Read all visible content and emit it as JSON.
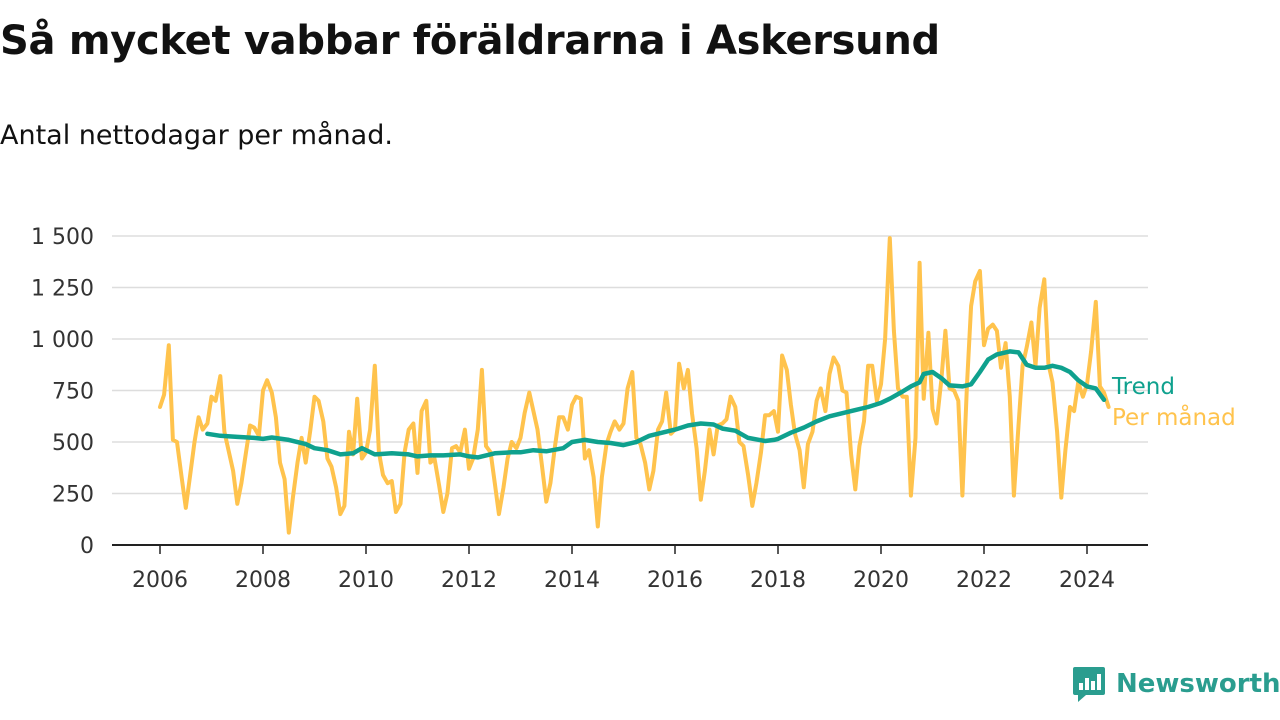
{
  "title": "Så mycket vabbar föräldrarna i Askersund",
  "subtitle": "Antal nettodagar per månad.",
  "brand": "Newsworthy",
  "colors": {
    "trend": "#0fa18e",
    "monthly": "#ffc34d",
    "grid": "#dddddd",
    "axis": "#222222",
    "text": "#333333",
    "brand": "#2a9d8f"
  },
  "chart_data": {
    "type": "line",
    "title": "Så mycket vabbar föräldrarna i Askersund",
    "subtitle": "Antal nettodagar per månad.",
    "xlim": [
      2006,
      2025.2
    ],
    "ylim": [
      0,
      1500
    ],
    "x_ticks": [
      2006,
      2008,
      2010,
      2012,
      2014,
      2016,
      2018,
      2020,
      2022,
      2024
    ],
    "y_ticks": [
      0,
      250,
      500,
      750,
      1000,
      1250,
      1500
    ],
    "y_tick_labels": [
      "0",
      "250",
      "500",
      "750",
      "1 000",
      "1 250",
      "1 500"
    ],
    "grid": "horizontal",
    "legend": "inline-right",
    "series": [
      {
        "name": "Per månad",
        "color": "#ffc34d",
        "points": [
          [
            2006.0,
            670
          ],
          [
            2006.08,
            730
          ],
          [
            2006.17,
            970
          ],
          [
            2006.25,
            510
          ],
          [
            2006.33,
            500
          ],
          [
            2006.42,
            330
          ],
          [
            2006.5,
            180
          ],
          [
            2006.58,
            330
          ],
          [
            2006.67,
            500
          ],
          [
            2006.75,
            620
          ],
          [
            2006.83,
            560
          ],
          [
            2006.92,
            590
          ],
          [
            2007.0,
            720
          ],
          [
            2007.08,
            700
          ],
          [
            2007.17,
            820
          ],
          [
            2007.25,
            550
          ],
          [
            2007.33,
            460
          ],
          [
            2007.42,
            360
          ],
          [
            2007.5,
            200
          ],
          [
            2007.58,
            300
          ],
          [
            2007.67,
            450
          ],
          [
            2007.75,
            580
          ],
          [
            2007.83,
            570
          ],
          [
            2007.92,
            530
          ],
          [
            2008.0,
            750
          ],
          [
            2008.08,
            800
          ],
          [
            2008.17,
            740
          ],
          [
            2008.25,
            620
          ],
          [
            2008.33,
            400
          ],
          [
            2008.42,
            320
          ],
          [
            2008.5,
            60
          ],
          [
            2008.58,
            230
          ],
          [
            2008.67,
            400
          ],
          [
            2008.75,
            520
          ],
          [
            2008.83,
            400
          ],
          [
            2008.92,
            560
          ],
          [
            2009.0,
            720
          ],
          [
            2009.08,
            700
          ],
          [
            2009.17,
            600
          ],
          [
            2009.25,
            420
          ],
          [
            2009.33,
            380
          ],
          [
            2009.42,
            280
          ],
          [
            2009.5,
            150
          ],
          [
            2009.58,
            190
          ],
          [
            2009.67,
            550
          ],
          [
            2009.75,
            440
          ],
          [
            2009.83,
            710
          ],
          [
            2009.92,
            420
          ],
          [
            2010.0,
            450
          ],
          [
            2010.08,
            560
          ],
          [
            2010.17,
            870
          ],
          [
            2010.25,
            450
          ],
          [
            2010.33,
            340
          ],
          [
            2010.42,
            300
          ],
          [
            2010.5,
            310
          ],
          [
            2010.58,
            160
          ],
          [
            2010.67,
            200
          ],
          [
            2010.75,
            450
          ],
          [
            2010.83,
            560
          ],
          [
            2010.92,
            590
          ],
          [
            2011.0,
            350
          ],
          [
            2011.08,
            650
          ],
          [
            2011.17,
            700
          ],
          [
            2011.25,
            400
          ],
          [
            2011.33,
            420
          ],
          [
            2011.42,
            290
          ],
          [
            2011.5,
            160
          ],
          [
            2011.58,
            250
          ],
          [
            2011.67,
            470
          ],
          [
            2011.75,
            480
          ],
          [
            2011.83,
            450
          ],
          [
            2011.92,
            560
          ],
          [
            2012.0,
            370
          ],
          [
            2012.08,
            420
          ],
          [
            2012.17,
            560
          ],
          [
            2012.25,
            850
          ],
          [
            2012.33,
            480
          ],
          [
            2012.42,
            450
          ],
          [
            2012.5,
            300
          ],
          [
            2012.58,
            150
          ],
          [
            2012.67,
            280
          ],
          [
            2012.75,
            420
          ],
          [
            2012.83,
            500
          ],
          [
            2012.92,
            470
          ],
          [
            2013.0,
            520
          ],
          [
            2013.08,
            640
          ],
          [
            2013.17,
            740
          ],
          [
            2013.25,
            650
          ],
          [
            2013.33,
            560
          ],
          [
            2013.42,
            380
          ],
          [
            2013.5,
            210
          ],
          [
            2013.58,
            300
          ],
          [
            2013.67,
            480
          ],
          [
            2013.75,
            620
          ],
          [
            2013.83,
            620
          ],
          [
            2013.92,
            560
          ],
          [
            2014.0,
            680
          ],
          [
            2014.08,
            720
          ],
          [
            2014.17,
            710
          ],
          [
            2014.25,
            420
          ],
          [
            2014.33,
            460
          ],
          [
            2014.42,
            330
          ],
          [
            2014.5,
            90
          ],
          [
            2014.58,
            330
          ],
          [
            2014.67,
            490
          ],
          [
            2014.75,
            550
          ],
          [
            2014.83,
            600
          ],
          [
            2014.92,
            560
          ],
          [
            2015.0,
            590
          ],
          [
            2015.08,
            760
          ],
          [
            2015.17,
            840
          ],
          [
            2015.25,
            520
          ],
          [
            2015.33,
            490
          ],
          [
            2015.42,
            400
          ],
          [
            2015.5,
            270
          ],
          [
            2015.58,
            360
          ],
          [
            2015.67,
            560
          ],
          [
            2015.75,
            600
          ],
          [
            2015.83,
            740
          ],
          [
            2015.92,
            540
          ],
          [
            2016.0,
            560
          ],
          [
            2016.08,
            880
          ],
          [
            2016.17,
            760
          ],
          [
            2016.25,
            850
          ],
          [
            2016.33,
            640
          ],
          [
            2016.42,
            470
          ],
          [
            2016.5,
            220
          ],
          [
            2016.58,
            360
          ],
          [
            2016.67,
            560
          ],
          [
            2016.75,
            440
          ],
          [
            2016.83,
            580
          ],
          [
            2016.92,
            590
          ],
          [
            2017.0,
            610
          ],
          [
            2017.08,
            720
          ],
          [
            2017.17,
            670
          ],
          [
            2017.25,
            500
          ],
          [
            2017.33,
            480
          ],
          [
            2017.42,
            340
          ],
          [
            2017.5,
            190
          ],
          [
            2017.58,
            300
          ],
          [
            2017.67,
            450
          ],
          [
            2017.75,
            630
          ],
          [
            2017.83,
            630
          ],
          [
            2017.92,
            650
          ],
          [
            2018.0,
            550
          ],
          [
            2018.08,
            920
          ],
          [
            2018.17,
            850
          ],
          [
            2018.25,
            680
          ],
          [
            2018.33,
            540
          ],
          [
            2018.42,
            460
          ],
          [
            2018.5,
            280
          ],
          [
            2018.58,
            490
          ],
          [
            2018.67,
            550
          ],
          [
            2018.75,
            700
          ],
          [
            2018.83,
            760
          ],
          [
            2018.92,
            650
          ],
          [
            2019.0,
            830
          ],
          [
            2019.08,
            910
          ],
          [
            2019.17,
            870
          ],
          [
            2019.25,
            750
          ],
          [
            2019.33,
            740
          ],
          [
            2019.42,
            440
          ],
          [
            2019.5,
            270
          ],
          [
            2019.58,
            480
          ],
          [
            2019.67,
            600
          ],
          [
            2019.75,
            870
          ],
          [
            2019.83,
            870
          ],
          [
            2019.92,
            700
          ],
          [
            2020.0,
            780
          ],
          [
            2020.08,
            1000
          ],
          [
            2020.17,
            1490
          ],
          [
            2020.25,
            1040
          ],
          [
            2020.33,
            760
          ],
          [
            2020.42,
            720
          ],
          [
            2020.5,
            720
          ],
          [
            2020.58,
            240
          ],
          [
            2020.67,
            520
          ],
          [
            2020.75,
            1370
          ],
          [
            2020.83,
            710
          ],
          [
            2020.92,
            1030
          ],
          [
            2021.0,
            660
          ],
          [
            2021.08,
            590
          ],
          [
            2021.17,
            800
          ],
          [
            2021.25,
            1040
          ],
          [
            2021.33,
            760
          ],
          [
            2021.42,
            750
          ],
          [
            2021.5,
            700
          ],
          [
            2021.58,
            240
          ],
          [
            2021.67,
            780
          ],
          [
            2021.75,
            1160
          ],
          [
            2021.83,
            1280
          ],
          [
            2021.92,
            1330
          ],
          [
            2022.0,
            970
          ],
          [
            2022.08,
            1050
          ],
          [
            2022.17,
            1070
          ],
          [
            2022.25,
            1040
          ],
          [
            2022.33,
            860
          ],
          [
            2022.42,
            980
          ],
          [
            2022.5,
            720
          ],
          [
            2022.58,
            240
          ],
          [
            2022.67,
            580
          ],
          [
            2022.75,
            870
          ],
          [
            2022.83,
            960
          ],
          [
            2022.92,
            1080
          ],
          [
            2023.0,
            870
          ],
          [
            2023.08,
            1150
          ],
          [
            2023.17,
            1290
          ],
          [
            2023.25,
            880
          ],
          [
            2023.33,
            790
          ],
          [
            2023.42,
            550
          ],
          [
            2023.5,
            230
          ],
          [
            2023.58,
            460
          ],
          [
            2023.67,
            670
          ],
          [
            2023.75,
            650
          ],
          [
            2023.83,
            790
          ],
          [
            2023.92,
            720
          ],
          [
            2024.0,
            780
          ],
          [
            2024.08,
            940
          ],
          [
            2024.17,
            1180
          ],
          [
            2024.25,
            770
          ],
          [
            2024.33,
            740
          ],
          [
            2024.42,
            670
          ]
        ]
      },
      {
        "name": "Trend",
        "color": "#0fa18e",
        "points": [
          [
            2006.92,
            540
          ],
          [
            2007.17,
            530
          ],
          [
            2007.5,
            525
          ],
          [
            2007.83,
            520
          ],
          [
            2008.0,
            515
          ],
          [
            2008.17,
            522
          ],
          [
            2008.5,
            510
          ],
          [
            2008.83,
            490
          ],
          [
            2009.0,
            470
          ],
          [
            2009.25,
            460
          ],
          [
            2009.5,
            440
          ],
          [
            2009.75,
            445
          ],
          [
            2009.92,
            470
          ],
          [
            2010.17,
            440
          ],
          [
            2010.5,
            445
          ],
          [
            2010.83,
            440
          ],
          [
            2011.0,
            430
          ],
          [
            2011.25,
            435
          ],
          [
            2011.5,
            435
          ],
          [
            2011.83,
            440
          ],
          [
            2012.0,
            430
          ],
          [
            2012.17,
            425
          ],
          [
            2012.5,
            445
          ],
          [
            2012.83,
            450
          ],
          [
            2013.0,
            450
          ],
          [
            2013.25,
            460
          ],
          [
            2013.5,
            455
          ],
          [
            2013.83,
            470
          ],
          [
            2014.0,
            500
          ],
          [
            2014.25,
            510
          ],
          [
            2014.5,
            500
          ],
          [
            2014.75,
            495
          ],
          [
            2015.0,
            485
          ],
          [
            2015.25,
            500
          ],
          [
            2015.5,
            530
          ],
          [
            2015.75,
            545
          ],
          [
            2016.0,
            560
          ],
          [
            2016.25,
            580
          ],
          [
            2016.5,
            590
          ],
          [
            2016.75,
            585
          ],
          [
            2016.92,
            565
          ],
          [
            2017.17,
            555
          ],
          [
            2017.42,
            520
          ],
          [
            2017.75,
            505
          ],
          [
            2017.92,
            510
          ],
          [
            2018.0,
            515
          ],
          [
            2018.25,
            545
          ],
          [
            2018.5,
            570
          ],
          [
            2018.75,
            600
          ],
          [
            2019.0,
            625
          ],
          [
            2019.25,
            640
          ],
          [
            2019.5,
            655
          ],
          [
            2019.75,
            670
          ],
          [
            2020.0,
            690
          ],
          [
            2020.17,
            710
          ],
          [
            2020.42,
            745
          ],
          [
            2020.58,
            770
          ],
          [
            2020.75,
            790
          ],
          [
            2020.83,
            830
          ],
          [
            2021.0,
            840
          ],
          [
            2021.17,
            810
          ],
          [
            2021.33,
            775
          ],
          [
            2021.58,
            770
          ],
          [
            2021.75,
            780
          ],
          [
            2021.92,
            840
          ],
          [
            2022.08,
            900
          ],
          [
            2022.25,
            925
          ],
          [
            2022.5,
            940
          ],
          [
            2022.67,
            935
          ],
          [
            2022.83,
            875
          ],
          [
            2023.0,
            860
          ],
          [
            2023.17,
            860
          ],
          [
            2023.33,
            870
          ],
          [
            2023.5,
            860
          ],
          [
            2023.67,
            840
          ],
          [
            2023.83,
            800
          ],
          [
            2024.0,
            770
          ],
          [
            2024.17,
            760
          ],
          [
            2024.33,
            705
          ]
        ]
      }
    ],
    "legend_labels": [
      "Trend",
      "Per månad"
    ]
  }
}
